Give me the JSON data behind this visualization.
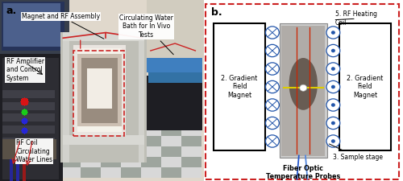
{
  "fig_width": 5.0,
  "fig_height": 2.25,
  "dpi": 100,
  "bg_color": "#ffffff",
  "border_color": "#cc2222",
  "panel_a_label": "a.",
  "panel_b_label": "b.",
  "label_fontsize": 9,
  "annotation_fontsize": 5.5,
  "diagram_fontsize": 5.8,
  "circle_color": "#2255aa",
  "gradient_label_left": "2. Gradient\nField\nMagnet",
  "gradient_label_right": "2. Gradient\nField\nMagnet",
  "rf_coil_label": "5. RF Heating\nCoil",
  "sample_stage_label": "3. Sample stage",
  "fiber_optic_label": "Fiber Optic\nTemperature Probes",
  "annotation_magnet_rf": "Magnet and RF Assembly",
  "annotation_water_bath": "Circulating Water\nBath for In Vivo\nTests",
  "annotation_rf_amp": "RF Amplifier\nand Control\nSystem",
  "annotation_rf_coil": "RF Coil\nCirculating\nWater Lines"
}
